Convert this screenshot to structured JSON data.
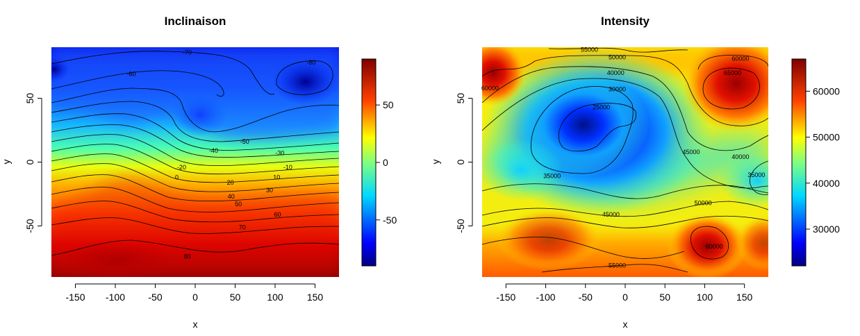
{
  "chart_data": [
    {
      "type": "heatmap",
      "title": "Inclinaison",
      "xlabel": "x",
      "ylabel": "y",
      "xlim": [
        -180,
        180
      ],
      "ylim": [
        -90,
        90
      ],
      "xticks": [
        -150,
        -100,
        -50,
        0,
        50,
        100,
        150
      ],
      "yticks": [
        -50,
        0,
        50
      ],
      "colorbar": {
        "range": [
          -90,
          90
        ],
        "ticks": [
          -50,
          0,
          50
        ]
      },
      "contour_labels": [
        {
          "text": "-70",
          "x": -10,
          "y": 86
        },
        {
          "text": "-60",
          "x": -80,
          "y": 69
        },
        {
          "text": "-80",
          "x": 145,
          "y": 78
        },
        {
          "text": "-50",
          "x": 62,
          "y": 16
        },
        {
          "text": "-40",
          "x": 23,
          "y": 9
        },
        {
          "text": "-30",
          "x": 106,
          "y": 7
        },
        {
          "text": "-20",
          "x": -17,
          "y": -4
        },
        {
          "text": "-10",
          "x": 116,
          "y": -4
        },
        {
          "text": "0",
          "x": -23,
          "y": -12
        },
        {
          "text": "10",
          "x": 102,
          "y": -12
        },
        {
          "text": "20",
          "x": 44,
          "y": -16
        },
        {
          "text": "30",
          "x": 93,
          "y": -22
        },
        {
          "text": "40",
          "x": 45,
          "y": -27
        },
        {
          "text": "50",
          "x": 54,
          "y": -33
        },
        {
          "text": "60",
          "x": 103,
          "y": -41
        },
        {
          "text": "70",
          "x": 59,
          "y": -51
        },
        {
          "text": "80",
          "x": -10,
          "y": -74
        }
      ]
    },
    {
      "type": "heatmap",
      "title": "Intensity",
      "xlabel": "x",
      "ylabel": "y",
      "xlim": [
        -180,
        180
      ],
      "ylim": [
        -90,
        90
      ],
      "xticks": [
        -150,
        -100,
        -50,
        0,
        50,
        100,
        150
      ],
      "yticks": [
        -50,
        0,
        50
      ],
      "colorbar": {
        "range": [
          22000,
          67000
        ],
        "ticks": [
          30000,
          40000,
          50000,
          60000
        ]
      },
      "contour_labels": [
        {
          "text": "55000",
          "x": -45,
          "y": 88
        },
        {
          "text": "50000",
          "x": -10,
          "y": 82
        },
        {
          "text": "40000",
          "x": -12,
          "y": 70
        },
        {
          "text": "30000",
          "x": -10,
          "y": 57
        },
        {
          "text": "25000",
          "x": -30,
          "y": 43
        },
        {
          "text": "60000",
          "x": 145,
          "y": 81
        },
        {
          "text": "65000",
          "x": 135,
          "y": 70
        },
        {
          "text": "60000",
          "x": -170,
          "y": 58
        },
        {
          "text": "45000",
          "x": 83,
          "y": 8
        },
        {
          "text": "40000",
          "x": 145,
          "y": 4
        },
        {
          "text": "35000",
          "x": 165,
          "y": -10
        },
        {
          "text": "35000",
          "x": -92,
          "y": -11
        },
        {
          "text": "45000",
          "x": -18,
          "y": -41
        },
        {
          "text": "50000",
          "x": 98,
          "y": -32
        },
        {
          "text": "60000",
          "x": 112,
          "y": -66
        },
        {
          "text": "55000",
          "x": -10,
          "y": -81
        }
      ]
    }
  ]
}
